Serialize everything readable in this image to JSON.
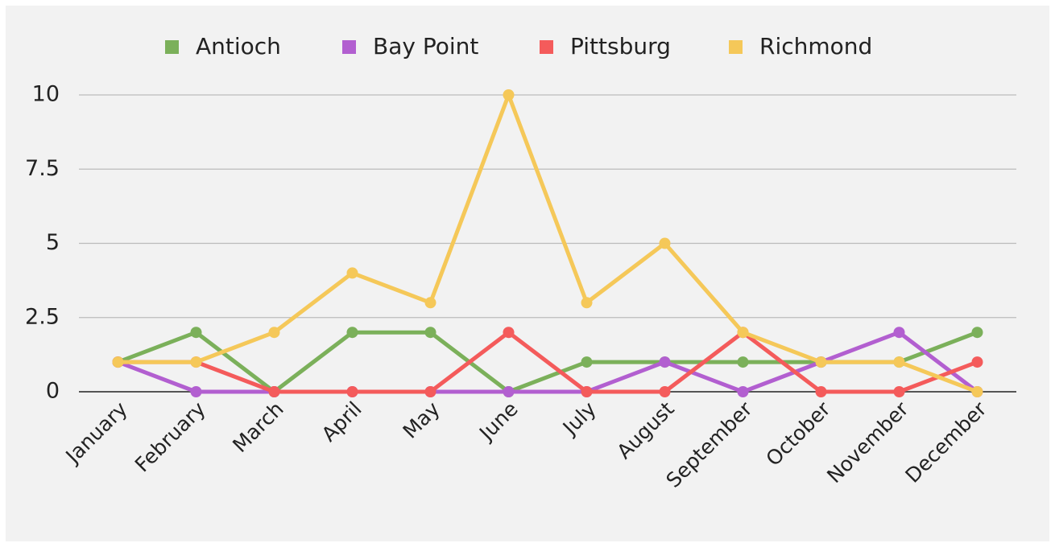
{
  "chart_data": {
    "type": "line",
    "categories": [
      "January",
      "February",
      "March",
      "April",
      "May",
      "June",
      "July",
      "August",
      "September",
      "October",
      "November",
      "December"
    ],
    "series": [
      {
        "name": "Antioch",
        "color": "#7bb05a",
        "values": [
          1,
          2,
          0,
          2,
          2,
          0,
          1,
          1,
          1,
          1,
          1,
          2
        ]
      },
      {
        "name": "Bay Point",
        "color": "#b25fd0",
        "values": [
          1,
          0,
          0,
          0,
          0,
          0,
          0,
          1,
          0,
          1,
          2,
          0
        ]
      },
      {
        "name": "Pittsburg",
        "color": "#f45b5b",
        "values": [
          1,
          1,
          0,
          0,
          0,
          2,
          0,
          0,
          2,
          0,
          0,
          1
        ]
      },
      {
        "name": "Richmond",
        "color": "#f5c859",
        "values": [
          1,
          1,
          2,
          4,
          3,
          10,
          3,
          5,
          2,
          1,
          1,
          0
        ]
      }
    ],
    "ylim": [
      0,
      10
    ],
    "yticks": [
      0,
      2.5,
      5,
      7.5,
      10
    ],
    "grid": true,
    "legend": "top"
  }
}
